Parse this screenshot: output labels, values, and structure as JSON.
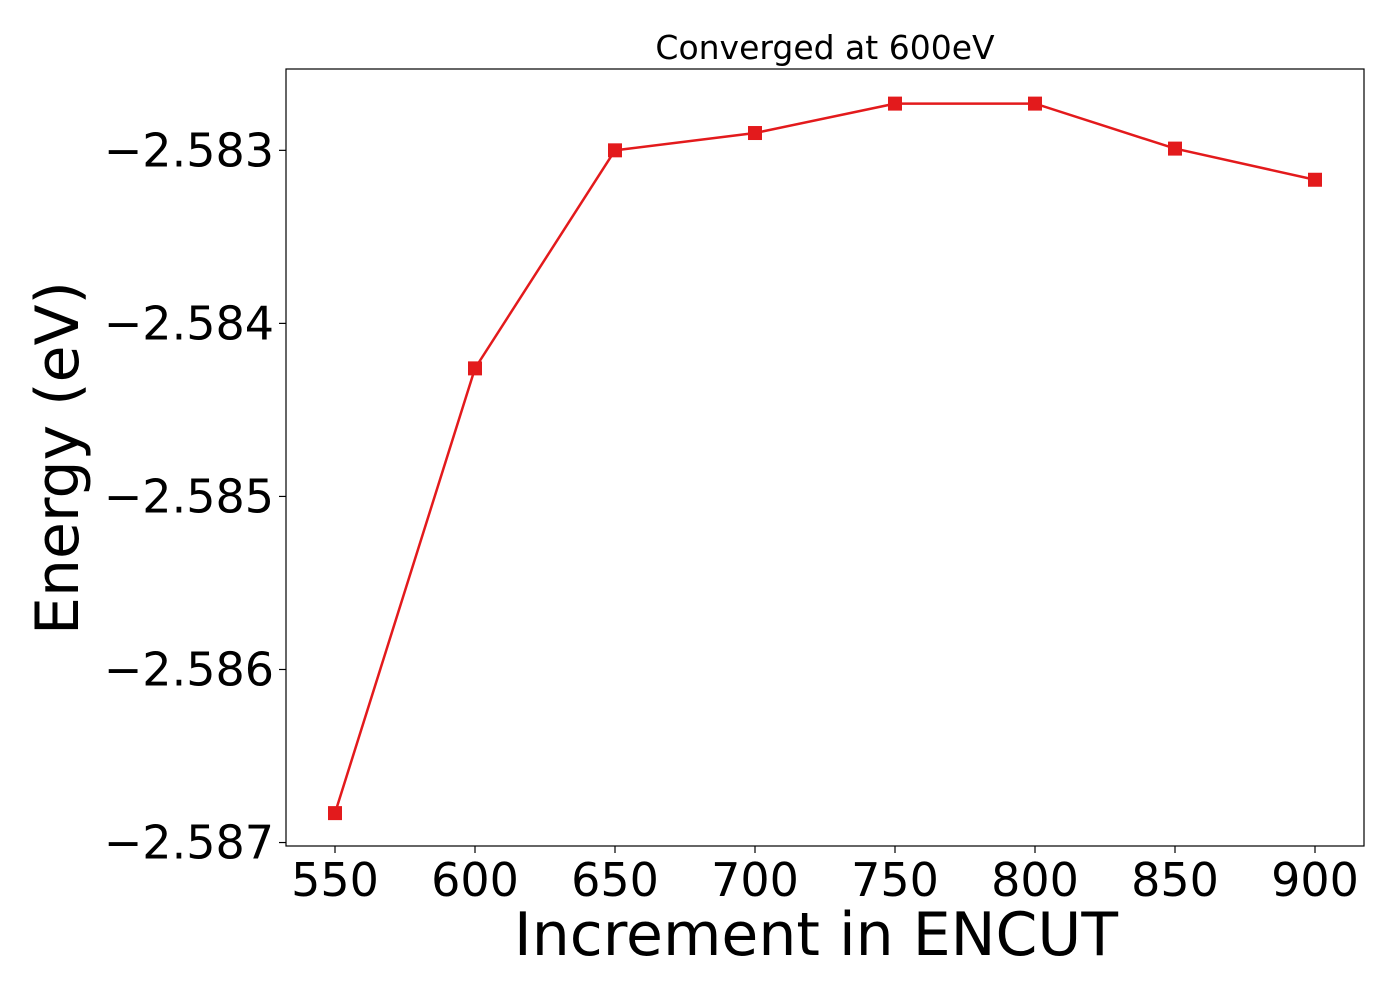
{
  "chart_data": {
    "type": "line",
    "title": "Converged at 600eV",
    "xlabel": "Increment in ENCUT",
    "ylabel": "Energy (eV)",
    "x": [
      550,
      600,
      650,
      700,
      750,
      800,
      850,
      900
    ],
    "series": [
      {
        "values": [
          -2.58683,
          -2.58426,
          -2.583,
          -2.5829,
          -2.58273,
          -2.58273,
          -2.58299,
          -2.58317
        ],
        "color": "#e31a1c",
        "marker": "square"
      }
    ],
    "xticks": [
      550,
      600,
      650,
      700,
      750,
      800,
      850,
      900
    ],
    "xtick_labels": [
      "550",
      "600",
      "650",
      "700",
      "750",
      "800",
      "850",
      "900"
    ],
    "yticks": [
      -2.583,
      -2.584,
      -2.585,
      -2.586,
      -2.587
    ],
    "ytick_labels": [
      "−2.583",
      "−2.584",
      "−2.585",
      "−2.586",
      "−2.587"
    ],
    "xlim": [
      532.5,
      917.5
    ],
    "ylim": [
      -2.58702,
      -2.58253
    ],
    "grid": false,
    "legend": "none"
  }
}
